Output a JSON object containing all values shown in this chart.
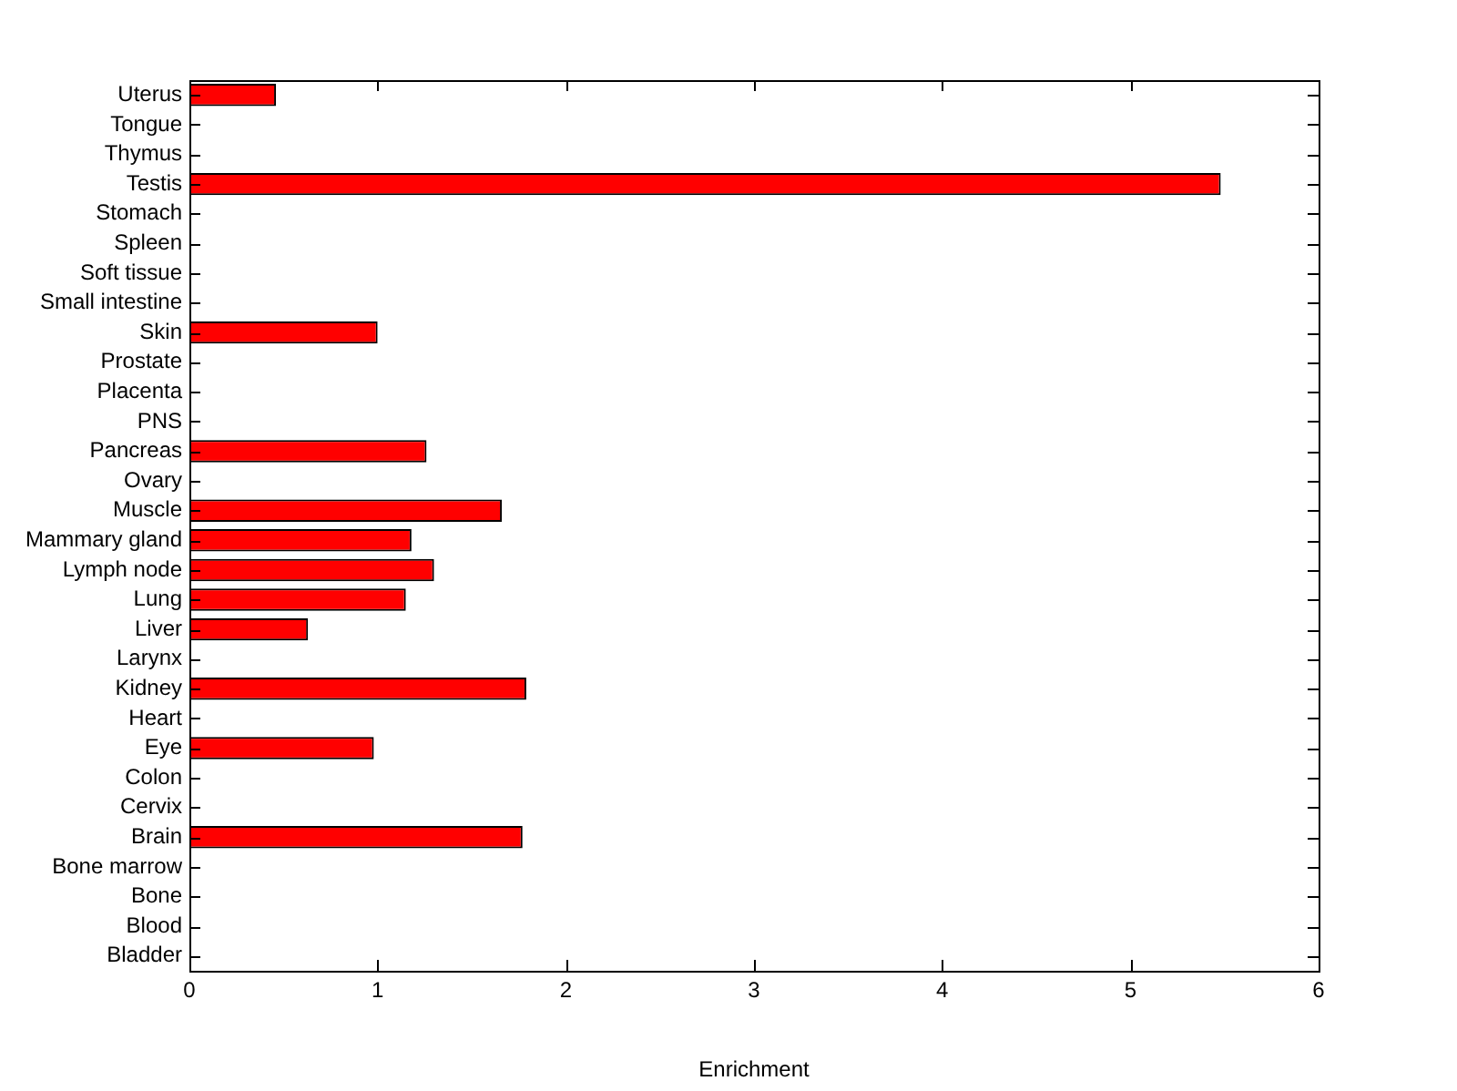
{
  "chart_data": {
    "type": "bar",
    "orientation": "horizontal",
    "xlabel": "Enrichment",
    "categories": [
      "Uterus",
      "Tongue",
      "Thymus",
      "Testis",
      "Stomach",
      "Spleen",
      "Soft tissue",
      "Small intestine",
      "Skin",
      "Prostate",
      "Placenta",
      "PNS",
      "Pancreas",
      "Ovary",
      "Muscle",
      "Mammary gland",
      "Lymph node",
      "Lung",
      "Liver",
      "Larynx",
      "Kidney",
      "Heart",
      "Eye",
      "Colon",
      "Cervix",
      "Brain",
      "Bone marrow",
      "Bone",
      "Blood",
      "Bladder"
    ],
    "values": [
      0.46,
      0,
      0,
      5.48,
      0,
      0,
      0,
      0,
      1.0,
      0,
      0,
      0,
      1.26,
      0,
      1.66,
      1.18,
      1.3,
      1.15,
      0.63,
      0,
      1.79,
      0,
      0.98,
      0,
      0,
      1.77,
      0,
      0,
      0,
      0
    ],
    "color": "#ff0000",
    "xlim": [
      0,
      6
    ],
    "xticks": [
      0,
      1,
      2,
      3,
      4,
      5,
      6
    ],
    "grid": false,
    "legend": false
  }
}
